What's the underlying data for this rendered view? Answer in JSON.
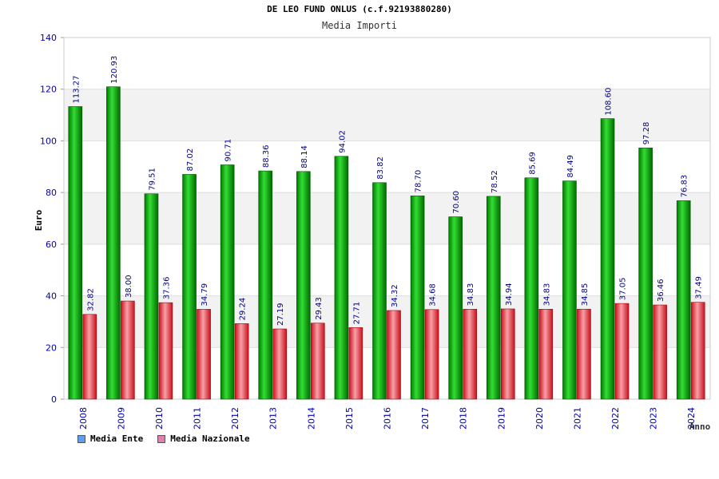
{
  "title": "DE LEO FUND ONLUS (c.f.92193880280)",
  "subtitle": "Media Importi",
  "colors": {
    "ente": "#00a000",
    "nazionale": "#e8202a",
    "legend_ente": "#5f9fe8",
    "legend_nazionale": "#e080b0"
  },
  "legend": [
    {
      "label": "Media Ente"
    },
    {
      "label": "Media Nazionale"
    }
  ],
  "chart_data": {
    "type": "bar",
    "title": "DE LEO FUND ONLUS (c.f.92193880280)",
    "subtitle": "Media Importi",
    "xlabel": "Anno",
    "ylabel": "Euro",
    "ylim": [
      0,
      140
    ],
    "yticks": [
      "0",
      "20",
      "40",
      "60",
      "80",
      "100",
      "120",
      "140"
    ],
    "categories": [
      "2008",
      "2009",
      "2010",
      "2011",
      "2012",
      "2013",
      "2014",
      "2015",
      "2016",
      "2017",
      "2018",
      "2019",
      "2020",
      "2021",
      "2022",
      "2023",
      "2024"
    ],
    "series": [
      {
        "name": "Media Ente",
        "values": [
          113.27,
          120.93,
          79.51,
          87.02,
          90.71,
          88.36,
          88.14,
          94.02,
          83.82,
          78.7,
          70.6,
          78.52,
          85.69,
          84.49,
          108.6,
          97.28,
          76.83
        ],
        "labels": [
          "113.27",
          "120.93",
          "79.51",
          "87.02",
          "90.71",
          "88.36",
          "88.14",
          "94.02",
          "83.82",
          "78.70",
          "70.60",
          "78.52",
          "85.69",
          "84.49",
          "108.60",
          "97.28",
          "76.83"
        ]
      },
      {
        "name": "Media Nazionale",
        "values": [
          32.82,
          38.0,
          37.36,
          34.79,
          29.24,
          27.19,
          29.43,
          27.71,
          34.32,
          34.68,
          34.83,
          34.94,
          34.83,
          34.85,
          37.05,
          36.46,
          37.49
        ],
        "labels": [
          "32.82",
          "38.00",
          "37.36",
          "34.79",
          "29.24",
          "27.19",
          "29.43",
          "27.71",
          "34.32",
          "34.68",
          "34.83",
          "34.94",
          "34.83",
          "34.85",
          "37.05",
          "36.46",
          "37.49"
        ]
      }
    ]
  }
}
